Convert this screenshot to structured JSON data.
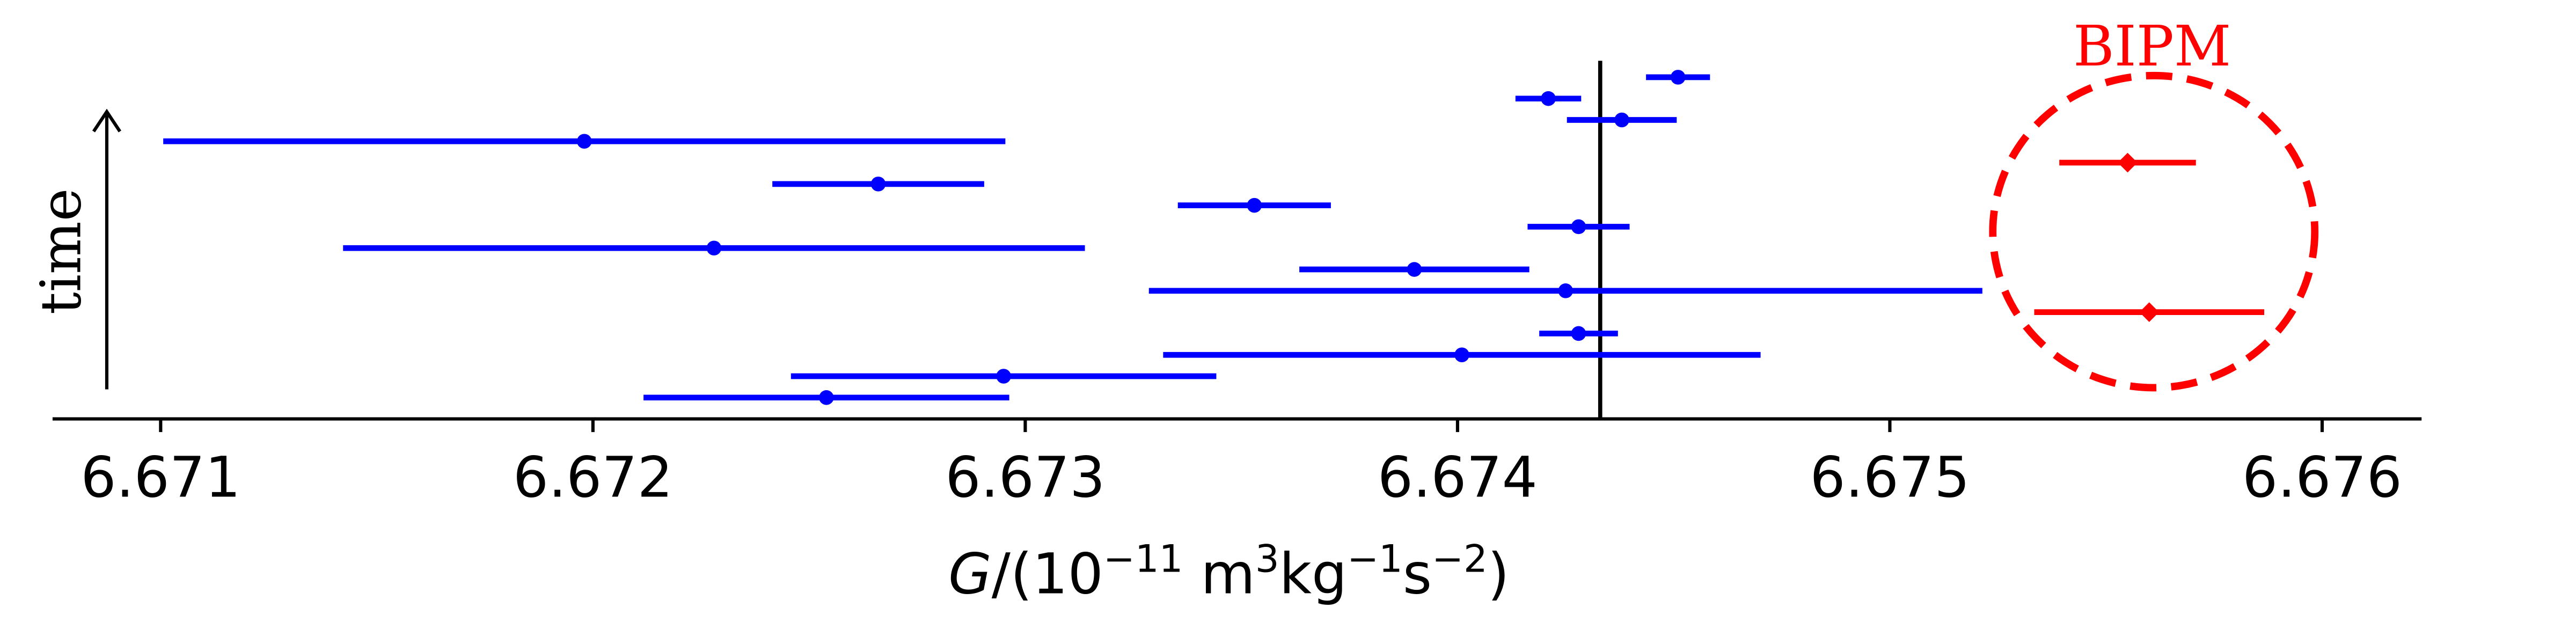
{
  "chart_data": {
    "type": "errorbar",
    "ylabel": "time",
    "xlabel_parts": [
      {
        "text": "G",
        "italic": true
      },
      {
        "text": "/(10"
      },
      {
        "text": "−11",
        "sup": true
      },
      {
        "text": " m"
      },
      {
        "text": "3",
        "sup": true
      },
      {
        "text": "kg"
      },
      {
        "text": "−1",
        "sup": true
      },
      {
        "text": "s"
      },
      {
        "text": "−2",
        "sup": true
      },
      {
        "text": ")"
      }
    ],
    "xlim": [
      6.67075,
      6.67623
    ],
    "xticks": [
      6.671,
      6.672,
      6.673,
      6.674,
      6.675,
      6.676
    ],
    "ylim": [
      0,
      18
    ],
    "reference_x": 6.67433,
    "series": [
      {
        "color": "#0000ff",
        "marker": "circle",
        "x": [
          6.67451,
          6.67421,
          6.67438,
          6.67198,
          6.67266,
          6.67353,
          6.67428,
          6.67228,
          6.6739,
          6.67425,
          6.67428,
          6.67401,
          6.67295,
          6.67254
        ],
        "xerr": [
          7.4e-05,
          7.6e-05,
          0.000127,
          0.000974,
          0.000245,
          0.000177,
          0.000118,
          0.000858,
          0.000266,
          0.000964,
          9.1e-05,
          0.000691,
          0.000492,
          0.000423
        ],
        "y": [
          16,
          15,
          14,
          13,
          11,
          10,
          9,
          8,
          7,
          6,
          4,
          3,
          2,
          1
        ]
      },
      {
        "name": "BIPM",
        "color": "#ff0000",
        "marker": "diamond",
        "x": [
          6.67555,
          6.6756
        ],
        "xerr": [
          0.000158,
          0.000266
        ],
        "y": [
          12,
          5
        ]
      }
    ]
  }
}
